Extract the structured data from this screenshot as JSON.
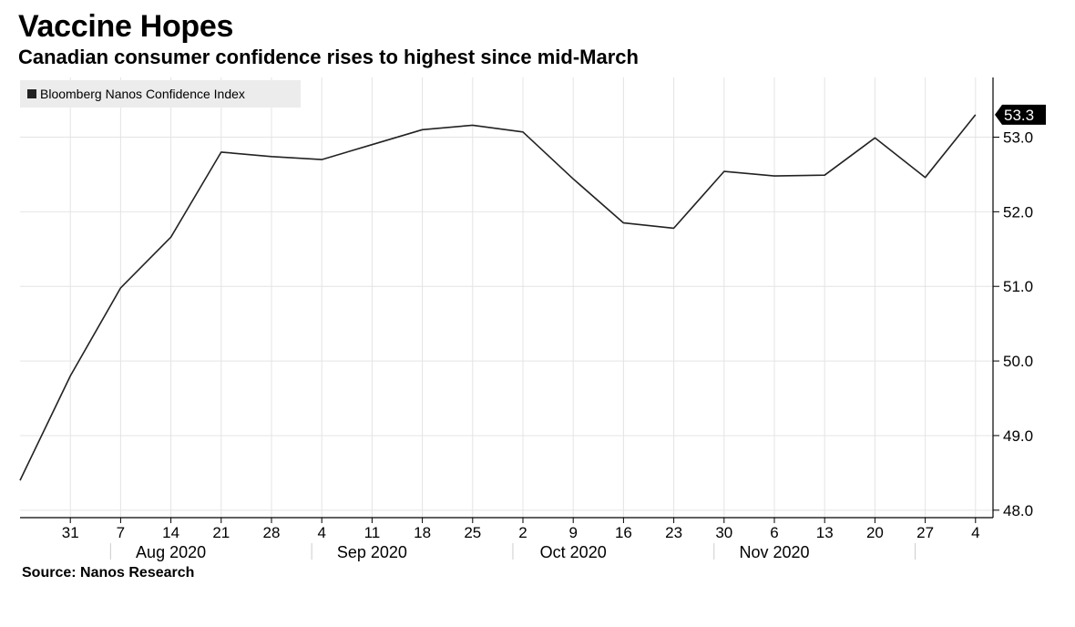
{
  "title": "Vaccine Hopes",
  "subtitle": "Canadian consumer confidence rises to highest since mid-March",
  "source": "Source: Nanos Research",
  "colors": {
    "line": "#222222",
    "grid": "#e4e4e4",
    "axis": "#000000",
    "legend_bg": "#ececec",
    "value_label_bg": "#000000"
  },
  "chart_data": {
    "type": "line",
    "title": "Vaccine Hopes",
    "subtitle": "Canadian consumer confidence rises to highest since mid-March",
    "xlabel": "",
    "ylabel": "",
    "legend_position": "top-left",
    "grid": true,
    "y_axis_side": "right",
    "ylim": [
      47.9,
      53.8
    ],
    "yticks": [
      48.0,
      49.0,
      50.0,
      51.0,
      52.0,
      53.0
    ],
    "ytick_labels": [
      "48.0",
      "49.0",
      "50.0",
      "51.0",
      "52.0",
      "53.0"
    ],
    "x": [
      "2020-07-24",
      "2020-07-31",
      "2020-08-07",
      "2020-08-14",
      "2020-08-21",
      "2020-08-28",
      "2020-09-04",
      "2020-09-11",
      "2020-09-18",
      "2020-09-25",
      "2020-10-02",
      "2020-10-09",
      "2020-10-16",
      "2020-10-23",
      "2020-10-30",
      "2020-11-06",
      "2020-11-13",
      "2020-11-20",
      "2020-11-27",
      "2020-12-04"
    ],
    "xtick_labels": [
      "31",
      "7",
      "14",
      "21",
      "28",
      "4",
      "11",
      "18",
      "25",
      "2",
      "9",
      "16",
      "23",
      "30",
      "6",
      "13",
      "20",
      "27",
      "4"
    ],
    "month_labels": [
      "Aug 2020",
      "Sep 2020",
      "Oct 2020",
      "Nov 2020"
    ],
    "series": [
      {
        "name": "Bloomberg Nanos Confidence Index",
        "values": [
          48.4,
          49.8,
          50.98,
          51.66,
          52.8,
          52.74,
          52.7,
          52.9,
          53.1,
          53.16,
          53.07,
          52.44,
          51.85,
          51.78,
          52.54,
          52.48,
          52.49,
          52.99,
          52.46,
          53.3
        ]
      }
    ],
    "last_value_label": "53.3"
  }
}
